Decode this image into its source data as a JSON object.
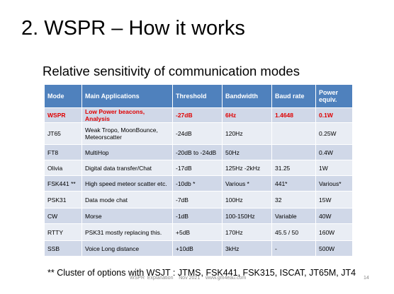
{
  "title": "2. WSPR – How it works",
  "subtitle": "Relative sensitivity of communication modes",
  "table": {
    "header": [
      "Mode",
      "Main Applications",
      "Threshold",
      "Bandwidth",
      "Baud rate",
      "Power equiv."
    ],
    "rows": [
      [
        "WSPR",
        "Low Power beacons, Analysis",
        "-27dB",
        "6Hz",
        "1.4648",
        "0.1W"
      ],
      [
        "JT65",
        "Weak Tropo,  MoonBounce, Meteorscatter",
        "-24dB",
        "120Hz",
        "",
        "0.25W"
      ],
      [
        "FT8",
        "MultiHop",
        "-20dB to -24dB",
        "50Hz",
        "",
        "0.4W"
      ],
      [
        "Olivia",
        "Digital data transfer/Chat",
        "-17dB",
        "125Hz -2kHz",
        "31.25",
        "1W"
      ],
      [
        "FSK441 **",
        "High speed meteor scatter etc.",
        "-10db *",
        "Various  *",
        "441*",
        "Various*"
      ],
      [
        "PSK31",
        "Data mode chat",
        "-7dB",
        "100Hz",
        "32",
        "15W"
      ],
      [
        "CW",
        "Morse",
        "-1dB",
        "100-150Hz",
        "Variable",
        "40W"
      ],
      [
        "RTTY",
        "PSK31 mostly replacing this.",
        "+5dB",
        "170Hz",
        "45.5 / 50",
        "160W"
      ],
      [
        "SSB",
        "Voice Long distance",
        "+10dB",
        "3kHz",
        "-",
        "500W"
      ]
    ]
  },
  "footnote": "** Cluster of options with WSJT : JTMS, FSK441, FSK315, ISCAT, JT65M, JT4",
  "footer": {
    "text": "WSPR  Explanation    Nov 2021    www.gm4eau.com",
    "page": "14"
  }
}
